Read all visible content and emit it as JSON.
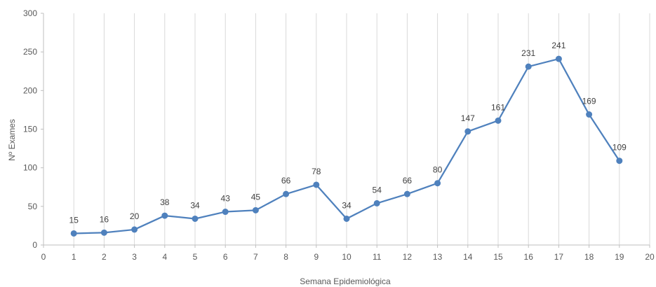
{
  "chart_data": {
    "type": "line",
    "xlabel": "Semana Epidemiológica",
    "ylabel": "Nº Exames",
    "xlim": [
      0,
      20
    ],
    "ylim": [
      0,
      300
    ],
    "x_ticks": [
      0,
      1,
      2,
      3,
      4,
      5,
      6,
      7,
      8,
      9,
      10,
      11,
      12,
      13,
      14,
      15,
      16,
      17,
      18,
      19,
      20
    ],
    "y_ticks": [
      0,
      50,
      100,
      150,
      200,
      250,
      300
    ],
    "grid": "vertical",
    "legend": "none",
    "series": [
      {
        "color": "#4f81bd",
        "x": [
          1,
          2,
          3,
          4,
          5,
          6,
          7,
          8,
          9,
          10,
          11,
          12,
          13,
          14,
          15,
          16,
          17,
          18,
          19
        ],
        "y": [
          15,
          16,
          20,
          38,
          34,
          43,
          45,
          66,
          78,
          34,
          54,
          66,
          80,
          147,
          161,
          231,
          241,
          169,
          109
        ]
      }
    ]
  }
}
